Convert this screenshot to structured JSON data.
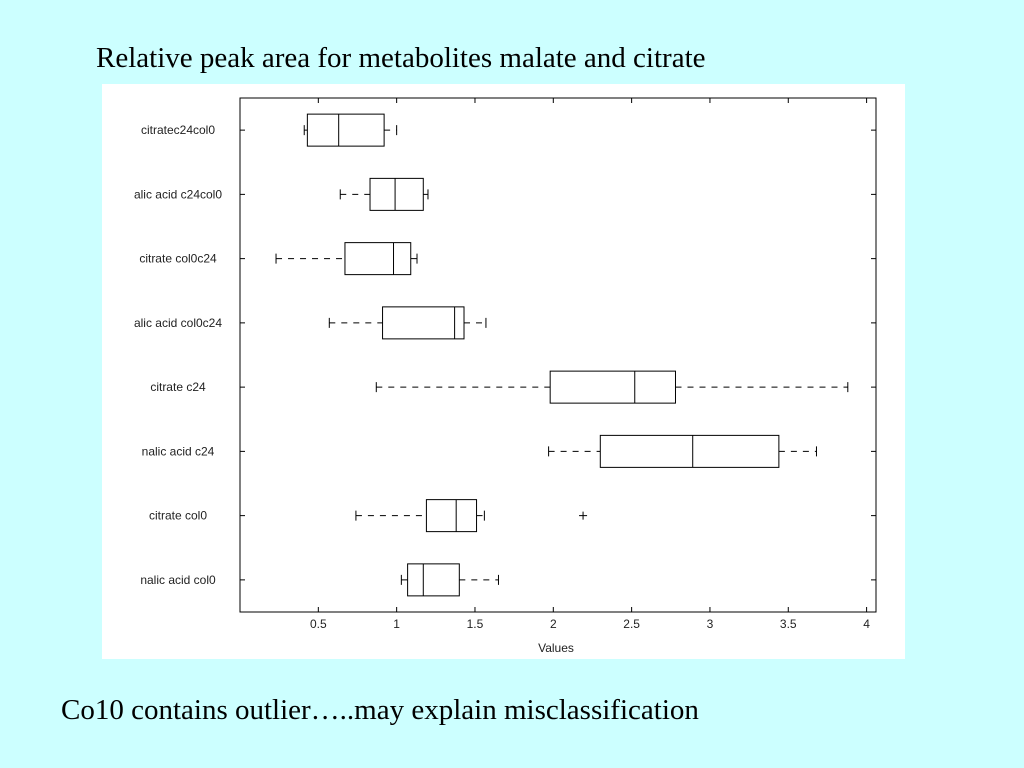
{
  "slide": {
    "title": "Relative peak area for metabolites malate and citrate",
    "caption": "Co10 contains outlier…..may explain misclassification"
  },
  "chart_data": {
    "type": "boxplot",
    "orientation": "horizontal",
    "xlabel": "Values",
    "ylabel": "",
    "xlim": [
      0.0,
      4.06
    ],
    "xticks": [
      0.5,
      1,
      1.5,
      2,
      2.5,
      3,
      3.5,
      4
    ],
    "xtick_labels": [
      "0.5",
      "1",
      "1.5",
      "2",
      "2.5",
      "3",
      "3.5",
      "4"
    ],
    "grid": false,
    "categories": [
      "citratec24col0",
      "alic acid c24col0",
      "citrate col0c24",
      "alic acid col0c24",
      "citrate c24",
      "nalic acid c24",
      "citrate col0",
      "nalic acid col0"
    ],
    "boxes": [
      {
        "label": "citratec24col0",
        "whisker_low": 0.41,
        "q1": 0.43,
        "median": 0.63,
        "q3": 0.92,
        "whisker_high": 1.0,
        "outliers": []
      },
      {
        "label": "alic acid c24col0",
        "whisker_low": 0.64,
        "q1": 0.83,
        "median": 0.99,
        "q3": 1.17,
        "whisker_high": 1.2,
        "outliers": []
      },
      {
        "label": "citrate col0c24",
        "whisker_low": 0.23,
        "q1": 0.67,
        "median": 0.98,
        "q3": 1.09,
        "whisker_high": 1.13,
        "outliers": []
      },
      {
        "label": "alic acid col0c24",
        "whisker_low": 0.57,
        "q1": 0.91,
        "median": 1.37,
        "q3": 1.43,
        "whisker_high": 1.57,
        "outliers": []
      },
      {
        "label": "citrate c24",
        "whisker_low": 0.87,
        "q1": 1.98,
        "median": 2.52,
        "q3": 2.78,
        "whisker_high": 3.88,
        "outliers": []
      },
      {
        "label": "nalic acid c24",
        "whisker_low": 1.97,
        "q1": 2.3,
        "median": 2.89,
        "q3": 3.44,
        "whisker_high": 3.68,
        "outliers": []
      },
      {
        "label": "citrate col0",
        "whisker_low": 0.74,
        "q1": 1.19,
        "median": 1.38,
        "q3": 1.51,
        "whisker_high": 1.56,
        "outliers": [
          2.19
        ]
      },
      {
        "label": "nalic acid col0",
        "whisker_low": 1.03,
        "q1": 1.07,
        "median": 1.17,
        "q3": 1.4,
        "whisker_high": 1.65,
        "outliers": []
      }
    ]
  }
}
